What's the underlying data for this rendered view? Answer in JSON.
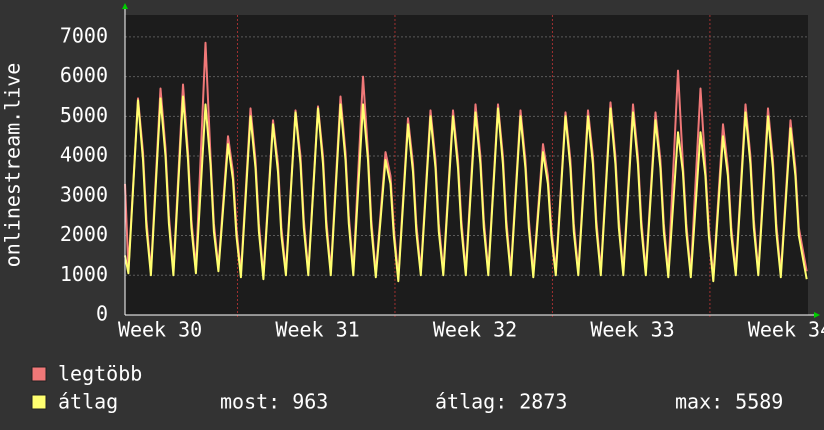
{
  "chart_data": {
    "type": "line",
    "ylabel": "onlinestream.live",
    "x": [
      0,
      0.15,
      0.58,
      0.8,
      0.95,
      1.15,
      1.58,
      1.8,
      1.95,
      2.15,
      2.58,
      2.8,
      2.95,
      3.15,
      3.58,
      3.8,
      3.95,
      4.15,
      4.58,
      4.8,
      4.95,
      5.15,
      5.58,
      5.8,
      5.95,
      6.15,
      6.58,
      6.8,
      6.95,
      7.15,
      7.58,
      7.8,
      7.95,
      8.15,
      8.58,
      8.8,
      8.95,
      9.15,
      9.58,
      9.8,
      9.95,
      10.15,
      10.58,
      10.8,
      10.95,
      11.15,
      11.58,
      11.8,
      11.95,
      12.15,
      12.58,
      12.8,
      12.95,
      13.15,
      13.58,
      13.8,
      13.95,
      14.15,
      14.58,
      14.8,
      14.95,
      15.15,
      15.58,
      15.8,
      15.95,
      16.15,
      16.58,
      16.8,
      16.95,
      17.15,
      17.58,
      17.8,
      17.95,
      18.15,
      18.58,
      18.8,
      18.95,
      19.15,
      19.58,
      19.8,
      19.95,
      20.15,
      20.58,
      20.8,
      20.95,
      21.15,
      21.58,
      21.8,
      21.95,
      22.15,
      22.58,
      22.8,
      22.95,
      23.15,
      23.58,
      23.8,
      23.95,
      24.15,
      24.58,
      24.8,
      24.95,
      25.15,
      25.58,
      25.8,
      25.95,
      26.15,
      26.58,
      26.8,
      26.95,
      27.15,
      27.58,
      27.8,
      27.95,
      28.15,
      28.58,
      28.8,
      28.95,
      29.15,
      29.58,
      29.8,
      29.95,
      30.3
    ],
    "series": [
      {
        "name": "legtöbb",
        "color": "#f07878",
        "values": [
          3300,
          1150,
          5450,
          4100,
          2400,
          1100,
          5700,
          4200,
          2500,
          1100,
          5800,
          4100,
          2400,
          1150,
          6850,
          4000,
          2300,
          1200,
          4500,
          3600,
          2200,
          1050,
          5200,
          3900,
          2300,
          1000,
          4900,
          3800,
          2200,
          1100,
          5150,
          4000,
          2400,
          1100,
          5250,
          4000,
          2400,
          1100,
          5500,
          4100,
          2500,
          1100,
          6000,
          4100,
          2400,
          1050,
          4100,
          3500,
          2200,
          950,
          4950,
          3800,
          2300,
          1100,
          5150,
          3900,
          2300,
          1100,
          5150,
          3900,
          2400,
          1100,
          5300,
          4000,
          2400,
          1100,
          5300,
          4000,
          2400,
          1100,
          5150,
          3900,
          2400,
          1050,
          4300,
          3500,
          2200,
          1100,
          5100,
          3900,
          2300,
          1100,
          5150,
          4000,
          2400,
          1100,
          5350,
          4000,
          2400,
          1100,
          5300,
          4000,
          2400,
          1100,
          5100,
          3900,
          2300,
          1050,
          6150,
          3800,
          2300,
          1050,
          5700,
          3700,
          2200,
          950,
          4800,
          3700,
          2200,
          1100,
          5300,
          4000,
          2400,
          1100,
          5200,
          3900,
          2300,
          1050,
          4900,
          3700,
          2200,
          1100
        ]
      },
      {
        "name": "átlag",
        "color": "#ffff70",
        "values": [
          1500,
          1050,
          5400,
          3900,
          2200,
          1000,
          5450,
          4000,
          2300,
          1000,
          5500,
          3900,
          2200,
          1050,
          5300,
          3800,
          2100,
          1100,
          4300,
          3400,
          2000,
          950,
          5000,
          3700,
          2100,
          900,
          4800,
          3600,
          2000,
          1000,
          5100,
          3800,
          2200,
          1000,
          5200,
          3800,
          2200,
          1000,
          5300,
          3900,
          2300,
          1000,
          5300,
          3900,
          2200,
          950,
          3900,
          3300,
          2000,
          850,
          4800,
          3600,
          2100,
          1000,
          5000,
          3700,
          2100,
          1000,
          5000,
          3700,
          2200,
          1000,
          5100,
          3800,
          2200,
          1000,
          5200,
          3800,
          2200,
          1000,
          5000,
          3700,
          2200,
          950,
          4100,
          3300,
          2000,
          1000,
          5000,
          3700,
          2100,
          1000,
          5000,
          3800,
          2200,
          1000,
          5200,
          3800,
          2200,
          1000,
          5100,
          3800,
          2200,
          1000,
          4900,
          3700,
          2100,
          950,
          4600,
          3600,
          2100,
          950,
          4600,
          3500,
          2000,
          850,
          4500,
          3500,
          2000,
          1000,
          5100,
          3800,
          2200,
          1000,
          5000,
          3700,
          2100,
          950,
          4700,
          3500,
          2000,
          900
        ]
      }
    ],
    "xlim": [
      0,
      30.36
    ],
    "xticks": [
      {
        "value": 1.56,
        "label": "Week 30"
      },
      {
        "value": 8.56,
        "label": "Week 31"
      },
      {
        "value": 15.56,
        "label": "Week 32"
      },
      {
        "value": 22.56,
        "label": "Week 33"
      },
      {
        "value": 29.56,
        "label": "Week 34"
      }
    ],
    "xgrid_major": [
      5,
      12,
      19,
      26
    ],
    "ylim": [
      0,
      7550
    ],
    "yticks": [
      0,
      1000,
      2000,
      3000,
      4000,
      5000,
      6000,
      7000
    ],
    "grid": true,
    "stats": [
      {
        "label": "most:",
        "value": 963
      },
      {
        "label": "átlag:",
        "value": 2873
      },
      {
        "label": "max:",
        "value": 5589
      }
    ]
  }
}
